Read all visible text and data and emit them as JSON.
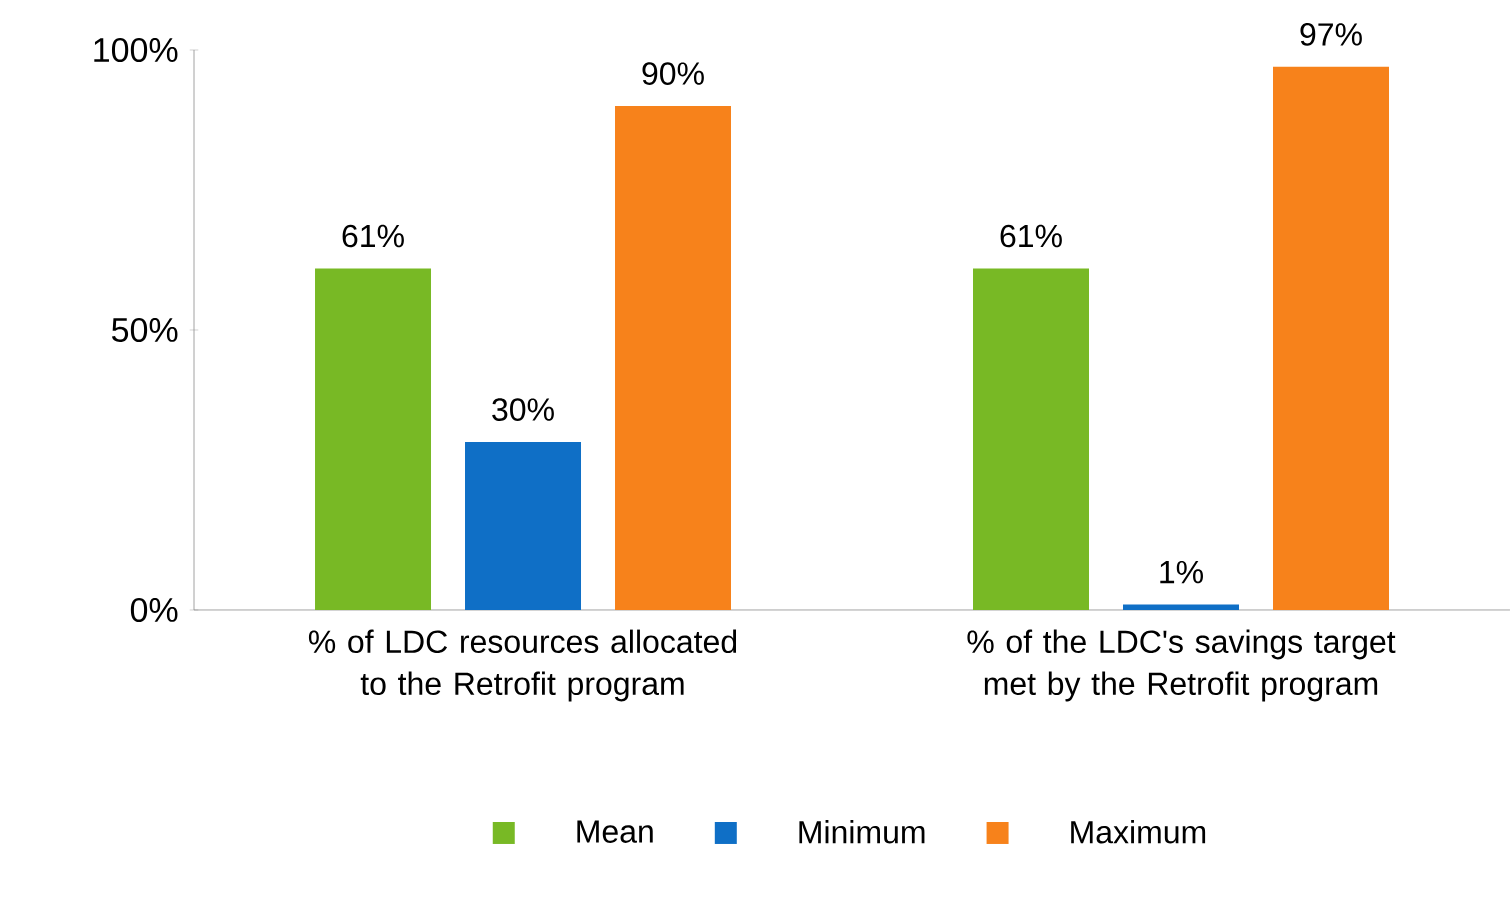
{
  "chart_data": {
    "type": "bar",
    "categories": [
      "% of LDC resources allocated to the Retrofit program",
      "% of the LDC's savings target met by the Retrofit program"
    ],
    "series": [
      {
        "name": "Mean",
        "color": "#78b925",
        "values": [
          61,
          61
        ],
        "value_labels": [
          "61%",
          "61%"
        ]
      },
      {
        "name": "Minimum",
        "color": "#0f6fc6",
        "values": [
          30,
          1
        ],
        "value_labels": [
          "30%",
          "1%"
        ]
      },
      {
        "name": "Maximum",
        "color": "#f7821b",
        "values": [
          90,
          97
        ],
        "value_labels": [
          "90%",
          "97%"
        ]
      }
    ],
    "ylim": [
      0,
      100
    ],
    "yticks": [
      {
        "value": 0,
        "label": "0%"
      },
      {
        "value": 50,
        "label": "50%"
      },
      {
        "value": 100,
        "label": "100%"
      }
    ],
    "grid": false,
    "legend": "bottom"
  }
}
